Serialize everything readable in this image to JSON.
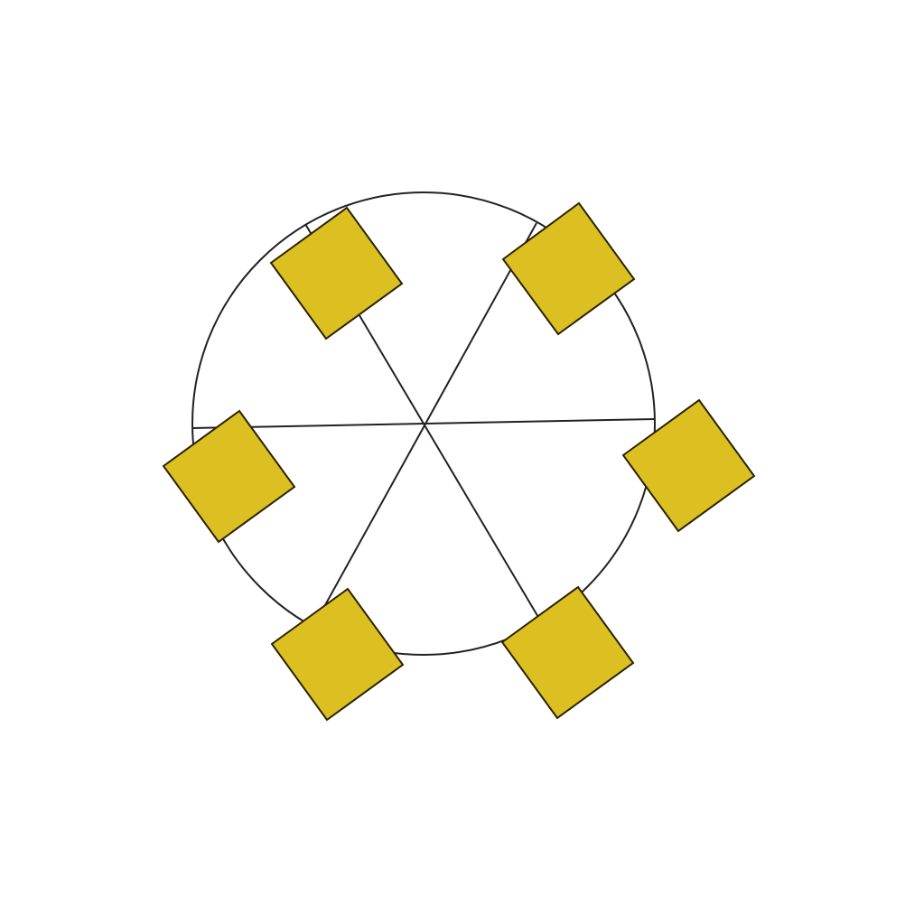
{
  "diagram": {
    "kind": "wheel",
    "spoke_count": 6,
    "square_count": 6,
    "colors": {
      "background": "#ffffff",
      "stroke": "#222222",
      "square_fill": "#dcbf20",
      "square_stroke": "#2a2200"
    }
  }
}
